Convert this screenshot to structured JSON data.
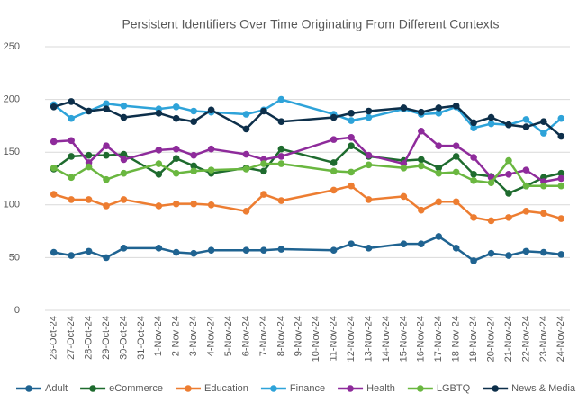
{
  "chart_data": {
    "type": "line",
    "title": "Persistent Identifiers Over Time Originating From Different Contexts",
    "categories": [
      "26-Oct-24",
      "27-Oct-24",
      "28-Oct-24",
      "29-Oct-24",
      "30-Oct-24",
      "31-Oct-24",
      "1-Nov-24",
      "2-Nov-24",
      "3-Nov-24",
      "4-Nov-24",
      "5-Nov-24",
      "6-Nov-24",
      "7-Nov-24",
      "8-Nov-24",
      "9-Nov-24",
      "10-Nov-24",
      "11-Nov-24",
      "12-Nov-24",
      "13-Nov-24",
      "14-Nov-24",
      "15-Nov-24",
      "16-Nov-24",
      "17-Nov-24",
      "18-Nov-24",
      "19-Nov-24",
      "20-Nov-24",
      "21-Nov-24",
      "22-Nov-24",
      "23-Nov-24",
      "24-Nov-24"
    ],
    "series": [
      {
        "name": "Adult",
        "color": "#1f6391",
        "values": [
          55,
          52,
          56,
          50,
          59,
          null,
          59,
          55,
          54,
          57,
          null,
          57,
          57,
          58,
          null,
          null,
          57,
          63,
          59,
          null,
          63,
          63,
          70,
          59,
          47,
          54,
          52,
          56,
          55,
          53
        ]
      },
      {
        "name": "eCommerce",
        "color": "#1e6b2e",
        "values": [
          134,
          146,
          147,
          147,
          148,
          null,
          129,
          144,
          137,
          130,
          null,
          135,
          132,
          153,
          null,
          null,
          140,
          156,
          146,
          null,
          142,
          143,
          135,
          146,
          129,
          127,
          111,
          118,
          126,
          130
        ]
      },
      {
        "name": "Education",
        "color": "#ed7d31",
        "values": [
          110,
          105,
          105,
          99,
          105,
          null,
          99,
          101,
          101,
          100,
          null,
          94,
          110,
          104,
          null,
          null,
          114,
          118,
          105,
          null,
          108,
          95,
          103,
          103,
          88,
          85,
          88,
          94,
          92,
          87
        ]
      },
      {
        "name": "Finance",
        "color": "#2ea3d9",
        "values": [
          195,
          182,
          189,
          196,
          194,
          null,
          191,
          193,
          189,
          188,
          null,
          186,
          190,
          200,
          null,
          null,
          186,
          180,
          183,
          null,
          191,
          186,
          187,
          193,
          173,
          177,
          176,
          181,
          168,
          182
        ]
      },
      {
        "name": "Health",
        "color": "#8e2b9b",
        "values": [
          160,
          161,
          140,
          156,
          143,
          null,
          152,
          153,
          147,
          153,
          null,
          148,
          143,
          146,
          null,
          null,
          162,
          164,
          147,
          null,
          139,
          170,
          156,
          156,
          145,
          126,
          129,
          133,
          122,
          125
        ]
      },
      {
        "name": "LGBTQ",
        "color": "#6ab740",
        "values": [
          135,
          126,
          136,
          124,
          130,
          null,
          139,
          130,
          132,
          133,
          null,
          134,
          139,
          139,
          null,
          null,
          132,
          131,
          138,
          null,
          135,
          137,
          130,
          131,
          123,
          121,
          142,
          118,
          118,
          118
        ]
      },
      {
        "name": "News & Media",
        "color": "#0d2f4a",
        "values": [
          193,
          198,
          189,
          191,
          183,
          null,
          187,
          182,
          179,
          190,
          null,
          172,
          189,
          179,
          null,
          null,
          183,
          187,
          189,
          null,
          192,
          188,
          192,
          194,
          178,
          183,
          176,
          174,
          179,
          165
        ]
      }
    ],
    "ylim": [
      0,
      250
    ],
    "yticks": [
      0,
      50,
      100,
      150,
      200,
      250
    ],
    "grid": true,
    "legend": "bottom"
  }
}
